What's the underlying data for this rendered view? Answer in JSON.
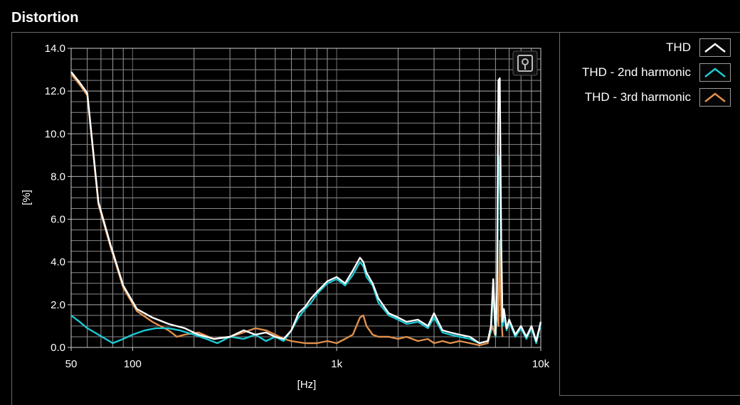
{
  "panel": {
    "title": "Distortion"
  },
  "legend": {
    "items": [
      {
        "label": "THD",
        "color": "#ffffff"
      },
      {
        "label": "THD - 2nd harmonic",
        "color": "#1ec8d2"
      },
      {
        "label": "THD - 3rd harmonic",
        "color": "#e0904c"
      }
    ]
  },
  "chart_data": {
    "type": "line",
    "xlabel": "[Hz]",
    "ylabel": "[%]",
    "xscale": "log",
    "xlim": [
      50,
      10000
    ],
    "ylim": [
      0,
      14
    ],
    "x_tick_labels": [
      "50",
      "100",
      "1k",
      "10k"
    ],
    "x_tick_values": [
      50,
      100,
      1000,
      10000
    ],
    "y_tick_labels": [
      "0.0",
      "2.0",
      "4.0",
      "6.0",
      "8.0",
      "10.0",
      "12.0",
      "14.0"
    ],
    "y_tick_values": [
      0,
      2,
      4,
      6,
      8,
      10,
      12,
      14
    ],
    "grid": true,
    "legend_position": "right",
    "series": [
      {
        "name": "THD",
        "color": "#ffffff",
        "x": [
          50,
          55,
          60,
          68,
          78,
          90,
          105,
          125,
          150,
          180,
          210,
          250,
          300,
          350,
          400,
          450,
          500,
          550,
          600,
          650,
          700,
          750,
          800,
          900,
          1000,
          1100,
          1200,
          1300,
          1350,
          1400,
          1500,
          1600,
          1800,
          2000,
          2200,
          2500,
          2800,
          3000,
          3300,
          3600,
          4000,
          4500,
          5000,
          5500,
          5700,
          5850,
          6000,
          6100,
          6200,
          6300,
          6400,
          6500,
          6600,
          6800,
          7000,
          7500,
          8000,
          8500,
          9000,
          9500,
          10000
        ],
        "y": [
          12.9,
          12.4,
          11.9,
          6.8,
          4.8,
          2.9,
          1.8,
          1.4,
          1.1,
          0.9,
          0.6,
          0.4,
          0.5,
          0.8,
          0.6,
          0.7,
          0.5,
          0.4,
          0.8,
          1.6,
          1.9,
          2.3,
          2.6,
          3.1,
          3.3,
          3.0,
          3.6,
          4.2,
          4.0,
          3.5,
          3.0,
          2.3,
          1.6,
          1.4,
          1.2,
          1.3,
          1.0,
          1.6,
          0.8,
          0.7,
          0.6,
          0.5,
          0.2,
          0.3,
          1.0,
          3.2,
          0.6,
          2.5,
          12.5,
          12.6,
          5.0,
          1.2,
          1.8,
          0.9,
          1.3,
          0.6,
          1.0,
          0.5,
          1.0,
          0.3,
          1.2
        ]
      },
      {
        "name": "THD - 2nd harmonic",
        "color": "#1ec8d2",
        "x": [
          50,
          55,
          60,
          68,
          80,
          90,
          100,
          115,
          130,
          150,
          170,
          200,
          230,
          260,
          300,
          350,
          400,
          450,
          500,
          550,
          600,
          650,
          700,
          750,
          800,
          900,
          1000,
          1100,
          1200,
          1300,
          1350,
          1400,
          1500,
          1600,
          1800,
          2000,
          2200,
          2500,
          2800,
          3000,
          3300,
          3600,
          4000,
          4500,
          5000,
          5500,
          5700,
          5850,
          6000,
          6100,
          6200,
          6300,
          6400,
          6500,
          6600,
          6800,
          7000,
          7500,
          8000,
          8500,
          9000,
          9500,
          10000
        ],
        "y": [
          1.5,
          1.2,
          0.9,
          0.6,
          0.2,
          0.4,
          0.6,
          0.8,
          0.9,
          0.9,
          0.8,
          0.6,
          0.4,
          0.2,
          0.5,
          0.4,
          0.6,
          0.3,
          0.5,
          0.3,
          0.8,
          1.4,
          1.8,
          2.1,
          2.5,
          3.0,
          3.2,
          2.9,
          3.4,
          4.0,
          3.8,
          3.3,
          2.9,
          2.1,
          1.5,
          1.3,
          1.1,
          1.2,
          0.9,
          1.4,
          0.7,
          0.6,
          0.5,
          0.4,
          0.2,
          0.3,
          0.8,
          2.8,
          0.5,
          2.0,
          9.0,
          8.0,
          4.5,
          1.0,
          1.5,
          0.8,
          1.2,
          0.5,
          0.9,
          0.4,
          0.9,
          0.2,
          1.1
        ]
      },
      {
        "name": "THD - 3rd harmonic",
        "color": "#e0904c",
        "x": [
          50,
          55,
          60,
          68,
          78,
          90,
          105,
          125,
          150,
          165,
          180,
          210,
          250,
          300,
          350,
          400,
          450,
          500,
          550,
          600,
          700,
          800,
          900,
          1000,
          1100,
          1200,
          1300,
          1350,
          1400,
          1500,
          1600,
          1800,
          2000,
          2200,
          2500,
          2800,
          3000,
          3300,
          3600,
          4000,
          4500,
          5000,
          5500,
          5800,
          6000,
          6100,
          6200,
          6300,
          6400,
          6500
        ],
        "y": [
          12.8,
          12.3,
          11.8,
          6.7,
          4.7,
          2.8,
          1.7,
          1.2,
          0.8,
          0.5,
          0.6,
          0.7,
          0.4,
          0.5,
          0.7,
          0.9,
          0.8,
          0.6,
          0.4,
          0.3,
          0.2,
          0.2,
          0.3,
          0.2,
          0.4,
          0.6,
          1.4,
          1.5,
          1.0,
          0.6,
          0.5,
          0.5,
          0.4,
          0.5,
          0.3,
          0.4,
          0.2,
          0.3,
          0.2,
          0.3,
          0.2,
          0.1,
          0.2,
          1.0,
          0.5,
          2.0,
          1.0,
          5.0,
          1.5,
          0.5
        ]
      }
    ]
  }
}
